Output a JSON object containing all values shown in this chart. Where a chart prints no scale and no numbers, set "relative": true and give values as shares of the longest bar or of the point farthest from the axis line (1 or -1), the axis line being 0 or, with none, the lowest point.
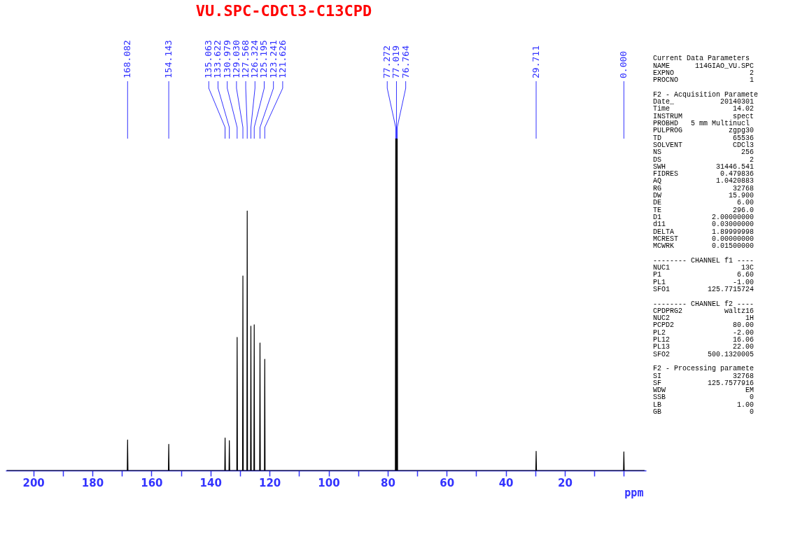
{
  "chart_data": [
    {
      "type": "line",
      "title": "VU.SPC-CDCl3-C13CPD",
      "xlabel": "ppm",
      "relative": true,
      "color": "#000000",
      "x": [
        209,
        168.2,
        168.082,
        167.96,
        154.26,
        154.143,
        154.03,
        135.18,
        135.063,
        134.95,
        133.74,
        133.622,
        133.5,
        131.1,
        130.979,
        130.86,
        129.15,
        129.03,
        128.91,
        127.69,
        127.568,
        127.45,
        126.44,
        126.324,
        126.2,
        125.31,
        125.195,
        125.08,
        123.36,
        123.241,
        123.12,
        121.74,
        121.626,
        121.51,
        77.4,
        77.272,
        77.15,
        77.019,
        76.89,
        76.764,
        76.64,
        29.83,
        29.711,
        29.59,
        0.12,
        0.0,
        -0.12,
        -7
      ],
      "values": [
        0,
        0,
        0.092,
        0,
        0,
        0.079,
        0,
        0,
        0.098,
        0,
        0,
        0.09,
        0,
        0,
        0.401,
        0,
        0,
        0.586,
        0,
        0,
        0.782,
        0,
        0,
        0.435,
        0,
        0,
        0.439,
        0,
        0,
        0.384,
        0,
        0,
        0.335,
        0,
        0,
        1,
        0,
        1,
        0,
        1,
        0,
        0,
        0.058,
        0,
        0,
        0.056,
        0,
        0
      ],
      "xlim": [
        209.4,
        -7.5
      ],
      "xticks": [
        200,
        {
          "value": 190,
          "label": null
        },
        180,
        {
          "value": 170,
          "label": null
        },
        160,
        {
          "value": 150,
          "label": null
        },
        140,
        {
          "value": 130,
          "label": null
        },
        120,
        {
          "value": 110,
          "label": null
        },
        100,
        {
          "value": 90,
          "label": null
        },
        80,
        {
          "value": 70,
          "label": null
        },
        60,
        {
          "value": 50,
          "label": null
        },
        40,
        {
          "value": 30,
          "label": null
        },
        20,
        {
          "value": 10,
          "label": null
        },
        {
          "value": 0,
          "label": null
        }
      ],
      "grid": false,
      "annotations": [
        {
          "text": "168.082",
          "x": 168.082
        },
        {
          "text": "154.143",
          "x": 154.143
        },
        {
          "text": "135.063",
          "x": 135.063
        },
        {
          "text": "133.622",
          "x": 133.622
        },
        {
          "text": "130.979",
          "x": 130.979
        },
        {
          "text": "129.030",
          "x": 129.03
        },
        {
          "text": "127.568",
          "x": 127.568
        },
        {
          "text": "126.324",
          "x": 126.324
        },
        {
          "text": "125.195",
          "x": 125.195
        },
        {
          "text": "123.241",
          "x": 123.241
        },
        {
          "text": "121.626",
          "x": 121.626
        },
        {
          "text": "77.272",
          "x": 77.272
        },
        {
          "text": "77.019",
          "x": 77.019
        },
        {
          "text": "76.764",
          "x": 76.764
        },
        {
          "text": "29.711",
          "x": 29.711
        },
        {
          "text": "0.000",
          "x": 0.0
        }
      ]
    },
    {
      "type": "other",
      "annotations": [
        "Current Data Parameters\nNAME      114GIAO_VU.SPC\nEXPNO                  2\nPROCNO                 1",
        "F2 - Acquisition Paramete\nDate_           20140301\nTime               14.02\nINSTRUM            spect\nPROBHD   5 mm Multinucl\nPULPROG           zgpg30\nTD                 65536\nSOLVENT            CDCl3\nNS                   256\nDS                     2\nSWH            31446.541\nFIDRES          0.479836\nAQ             1.0420883\nRG                 32768\nDW                15.900\nDE                  6.00\nTE                 296.0\nD1            2.00000000\nd11           0.03000000\nDELTA         1.89999998\nMCREST        0.00000000\nMCWRK         0.01500000",
        "-------- CHANNEL f1 ----\nNUC1                 13C\nP1                  6.60\nPL1                -1.00\nSFO1         125.7715724",
        "-------- CHANNEL f2 ----\nCPDPRG2          waltz16\nNUC2                  1H\nPCPD2              80.00\nPL2                -2.00\nPL12               16.06\nPL13               22.00\nSFO2         500.1320005",
        "F2 - Processing paramete\nSI                 32768\nSF           125.7577916\nWDW                   EM\nSSB                    0\nLB                  1.00\nGB                     0"
      ]
    }
  ]
}
